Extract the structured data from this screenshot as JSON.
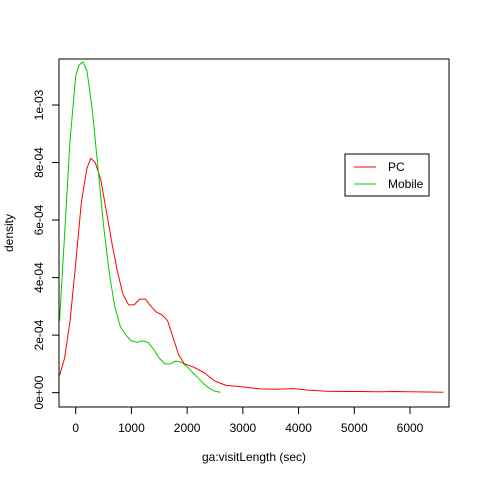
{
  "chart_data": {
    "type": "line",
    "title": "",
    "xlabel": "ga:visitLength (sec)",
    "ylabel": "density",
    "xlim": [
      -300,
      6700
    ],
    "ylim": [
      -5e-05,
      0.00116
    ],
    "x_ticks": [
      0,
      1000,
      2000,
      3000,
      4000,
      5000,
      6000
    ],
    "x_tick_labels": [
      "0",
      "1000",
      "2000",
      "3000",
      "4000",
      "5000",
      "6000"
    ],
    "y_ticks": [
      0,
      0.0002,
      0.0004,
      0.0006,
      0.0008,
      0.001
    ],
    "y_tick_labels": [
      "0e+00",
      "2e-04",
      "4e-04",
      "6e-04",
      "8e-04",
      "1e-03"
    ],
    "grid": false,
    "legend_position": "top-right",
    "series": [
      {
        "name": "PC",
        "color": "#ff0000",
        "points": [
          [
            -290,
            6e-05
          ],
          [
            -200,
            0.00012
          ],
          [
            -100,
            0.00025
          ],
          [
            0,
            0.00045
          ],
          [
            100,
            0.00066
          ],
          [
            200,
            0.00078
          ],
          [
            270,
            0.000815
          ],
          [
            350,
            0.0008
          ],
          [
            450,
            0.00074
          ],
          [
            550,
            0.00063
          ],
          [
            650,
            0.00052
          ],
          [
            750,
            0.00042
          ],
          [
            850,
            0.00034
          ],
          [
            950,
            0.000305
          ],
          [
            1050,
            0.000305
          ],
          [
            1150,
            0.000325
          ],
          [
            1250,
            0.000325
          ],
          [
            1350,
            0.0003
          ],
          [
            1450,
            0.00028
          ],
          [
            1550,
            0.00027
          ],
          [
            1650,
            0.00025
          ],
          [
            1750,
            0.00019
          ],
          [
            1850,
            0.00013
          ],
          [
            1950,
            0.0001
          ],
          [
            2100,
            9e-05
          ],
          [
            2300,
            7e-05
          ],
          [
            2500,
            4e-05
          ],
          [
            2700,
            2.5e-05
          ],
          [
            3000,
            2e-05
          ],
          [
            3300,
            1.3e-05
          ],
          [
            3600,
            1.2e-05
          ],
          [
            3900,
            1.4e-05
          ],
          [
            4200,
            8e-06
          ],
          [
            4500,
            5e-06
          ],
          [
            4800,
            4e-06
          ],
          [
            5100,
            4e-06
          ],
          [
            5400,
            3e-06
          ],
          [
            5700,
            4e-06
          ],
          [
            6000,
            3e-06
          ],
          [
            6300,
            2e-06
          ],
          [
            6600,
            1e-06
          ]
        ]
      },
      {
        "name": "Mobile",
        "color": "#00cc00",
        "points": [
          [
            -290,
            0.00025
          ],
          [
            -200,
            0.00055
          ],
          [
            -100,
            0.00088
          ],
          [
            0,
            0.0011
          ],
          [
            60,
            0.00114
          ],
          [
            130,
            0.00115
          ],
          [
            200,
            0.00112
          ],
          [
            300,
            0.00098
          ],
          [
            400,
            0.00078
          ],
          [
            500,
            0.00058
          ],
          [
            600,
            0.00042
          ],
          [
            700,
            0.0003
          ],
          [
            800,
            0.00023
          ],
          [
            900,
            0.0002
          ],
          [
            1000,
            0.00018
          ],
          [
            1100,
            0.000175
          ],
          [
            1200,
            0.00018
          ],
          [
            1300,
            0.000175
          ],
          [
            1400,
            0.00015
          ],
          [
            1500,
            0.00012
          ],
          [
            1600,
            0.0001
          ],
          [
            1700,
            0.0001
          ],
          [
            1800,
            0.00011
          ],
          [
            1900,
            0.000105
          ],
          [
            2000,
            9e-05
          ],
          [
            2100,
            7e-05
          ],
          [
            2200,
            5e-05
          ],
          [
            2300,
            3e-05
          ],
          [
            2400,
            1.5e-05
          ],
          [
            2500,
            5e-06
          ],
          [
            2600,
            1.5e-06
          ]
        ]
      }
    ]
  }
}
